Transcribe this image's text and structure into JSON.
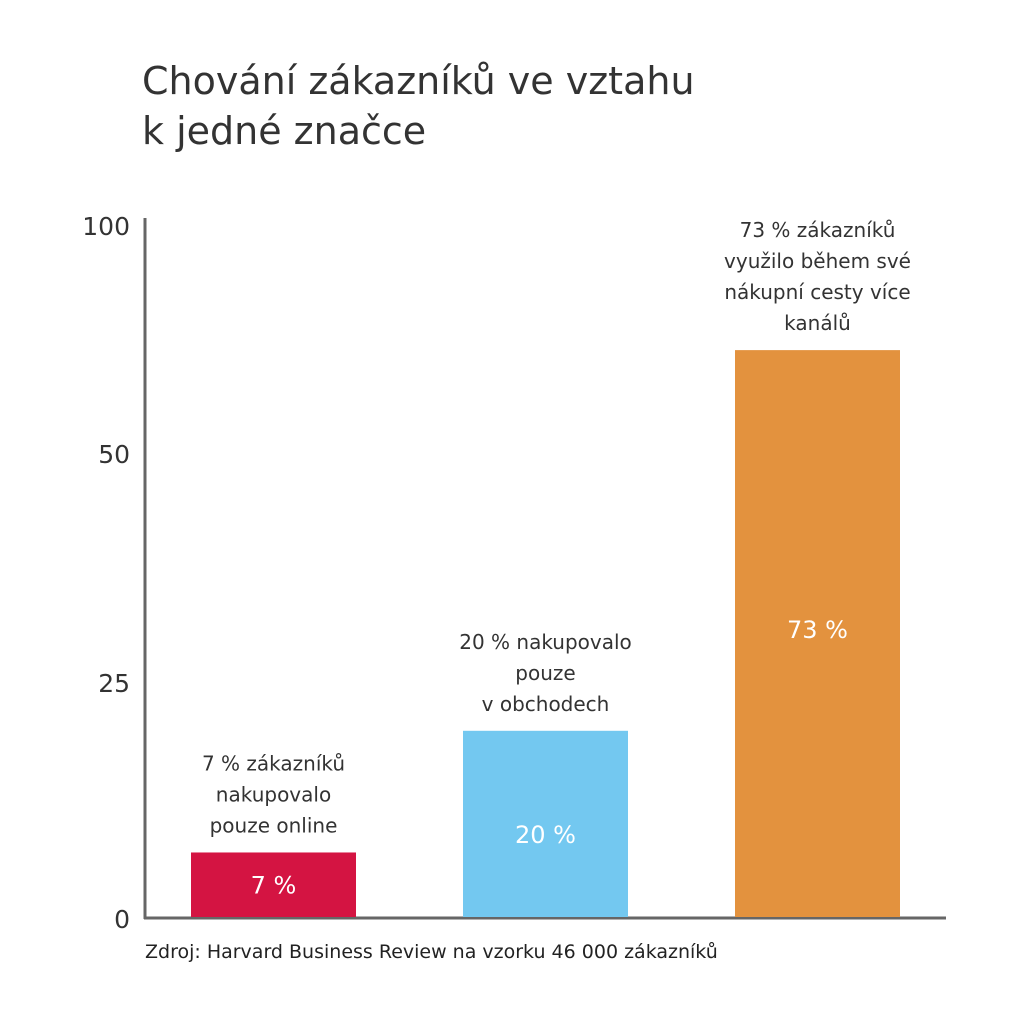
{
  "chart_data": {
    "type": "bar",
    "title": [
      "Chování zákazníků ve vztahu",
      "k jedné značce"
    ],
    "source": "Zdroj: Harvard Business Review na vzorku 46 000 zákazníků",
    "y_ticks": [
      0,
      25,
      50,
      100
    ],
    "ylim": [
      0,
      100
    ],
    "grid": false,
    "categories": [
      [
        "7 % zákazníků",
        "nakupovalo",
        "pouze online"
      ],
      [
        "20 % nakupovalo",
        "pouze",
        "v obchodech"
      ],
      [
        "73 % zákazníků",
        "využilo během své",
        "nákupní cesty více",
        "kanálů"
      ]
    ],
    "values": [
      7,
      20,
      73
    ],
    "data_labels": [
      "7 %",
      "20 %",
      "73 %"
    ],
    "colors": [
      "#d41442",
      "#73c8f0",
      "#e3923e"
    ]
  }
}
